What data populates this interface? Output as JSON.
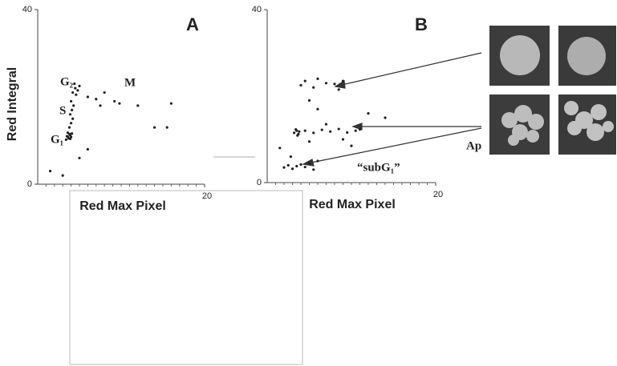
{
  "chart_data": [
    {
      "type": "scatter",
      "title": "A",
      "ylabel": "Red Integral",
      "xlabel": "Red Max Pixel",
      "xlim": [
        0,
        20
      ],
      "ylim": [
        0,
        40
      ],
      "xticks": [
        20
      ],
      "yticks": [
        0,
        40
      ],
      "color": "#222",
      "x": [
        3.5,
        3.7,
        3.9,
        3.6,
        4.0,
        3.8,
        3.4,
        4.1,
        3.6,
        3.9,
        3.8,
        4.0,
        4.2,
        3.9,
        4.1,
        4.3,
        4.0,
        4.2,
        4.5,
        4.8,
        4.4,
        5.0,
        4.6,
        6,
        7,
        8,
        9.2,
        9.8,
        7.5,
        12,
        16,
        1.5,
        3,
        5,
        6,
        14,
        15.5
      ],
      "values": [
        11,
        10.5,
        11.2,
        11.8,
        10.8,
        11.5,
        10.2,
        11.6,
        10.9,
        10.4,
        13,
        14,
        15,
        16,
        17,
        18,
        19,
        21,
        22,
        21.5,
        23,
        22.5,
        20.5,
        20,
        19.5,
        21,
        19,
        18.5,
        18,
        18,
        18.5,
        3,
        2,
        6,
        8,
        13,
        13
      ],
      "annotations": [
        "G₂",
        "M",
        "S",
        "G₁"
      ]
    },
    {
      "type": "scatter",
      "title": "B",
      "xlabel": "Red Max Pixel",
      "xlim": [
        0,
        20
      ],
      "ylim": [
        0,
        40
      ],
      "xticks": [
        20
      ],
      "yticks": [
        0,
        40
      ],
      "color": "#222",
      "x": [
        3.2,
        3.5,
        3.7,
        3.4,
        3.8,
        3.6,
        4.5,
        5.5,
        6.5,
        7.5,
        8.5,
        9.5,
        10.5,
        11,
        5,
        7,
        9,
        4,
        4.5,
        5.5,
        6,
        7,
        8,
        8.5,
        9,
        5,
        2,
        2.5,
        3,
        3.5,
        4,
        4.5,
        5,
        5.5,
        6,
        2.8,
        12,
        14,
        1.5,
        6,
        10
      ],
      "values": [
        11.5,
        12,
        11.2,
        12.3,
        11.8,
        10.9,
        12,
        11.5,
        12.2,
        11.8,
        12.4,
        11.6,
        12,
        12.3,
        9.5,
        13.5,
        10,
        22.5,
        23.5,
        22,
        24,
        23,
        22.8,
        21.5,
        23.5,
        19,
        3.5,
        4,
        3.2,
        3.8,
        4.2,
        3.6,
        4.5,
        3,
        5,
        6,
        16,
        15,
        8,
        17,
        8.5
      ],
      "annotations": [
        "Ap",
        "“subG₁”"
      ]
    }
  ]
}
